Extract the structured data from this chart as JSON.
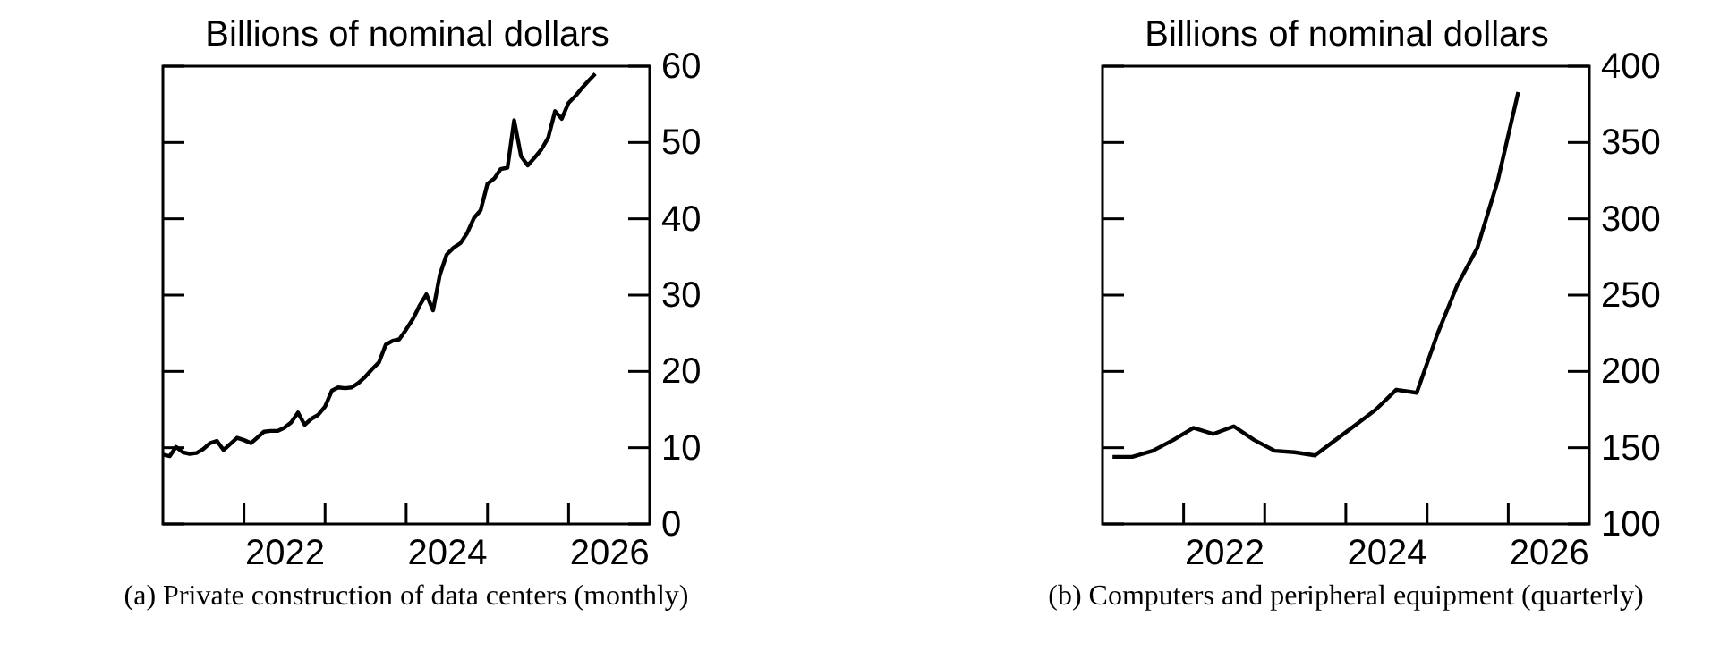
{
  "chart_data": [
    {
      "type": "line",
      "title": "(a) Private construction of data centers (monthly)",
      "ylabel": "Billions of nominal dollars",
      "x": [
        "2021-01",
        "2021-02",
        "2021-03",
        "2021-04",
        "2021-05",
        "2021-06",
        "2021-07",
        "2021-08",
        "2021-09",
        "2021-10",
        "2021-11",
        "2021-12",
        "2022-01",
        "2022-02",
        "2022-03",
        "2022-04",
        "2022-05",
        "2022-06",
        "2022-07",
        "2022-08",
        "2022-09",
        "2022-10",
        "2022-11",
        "2022-12",
        "2023-01",
        "2023-02",
        "2023-03",
        "2023-04",
        "2023-05",
        "2023-06",
        "2023-07",
        "2023-08",
        "2023-09",
        "2023-10",
        "2023-11",
        "2023-12",
        "2024-01",
        "2024-02",
        "2024-03",
        "2024-04",
        "2024-05",
        "2024-06",
        "2024-07",
        "2024-08",
        "2024-09",
        "2024-10",
        "2024-11",
        "2024-12",
        "2025-01",
        "2025-02",
        "2025-03",
        "2025-04",
        "2025-05",
        "2025-06",
        "2025-07",
        "2025-08",
        "2025-09",
        "2025-10",
        "2025-11",
        "2025-12",
        "2026-01",
        "2026-02",
        "2026-03",
        "2026-04",
        "2026-05"
      ],
      "series": [
        {
          "color": "#000000",
          "values": [
            9.1,
            8.9,
            10.1,
            9.4,
            9.2,
            9.3,
            9.8,
            10.6,
            10.9,
            9.7,
            10.5,
            11.3,
            11.0,
            10.6,
            11.3,
            12.1,
            12.2,
            12.2,
            12.6,
            13.3,
            14.6,
            13.0,
            13.8,
            14.3,
            15.4,
            17.5,
            17.9,
            17.8,
            17.9,
            18.5,
            19.3,
            20.3,
            21.2,
            23.5,
            24.0,
            24.2,
            25.5,
            26.9,
            28.6,
            30.1,
            28.0,
            32.7,
            35.3,
            36.2,
            36.8,
            38.1,
            40.1,
            41.1,
            44.6,
            45.3,
            46.5,
            46.7,
            52.9,
            48.2,
            47.0,
            48.0,
            49.1,
            50.6,
            54.1,
            53.1,
            55.2,
            56.1,
            57.1,
            58.1,
            59.0
          ]
        }
      ],
      "xlim": [
        "2021-01-01",
        "2027-01-01"
      ],
      "xticks": [
        {
          "value": "2022-01-01",
          "label": null
        },
        {
          "value": "2023-01-01",
          "label": null
        },
        {
          "value": "2024-01-01",
          "label": null
        },
        {
          "value": "2025-01-01",
          "label": null
        },
        {
          "value": "2026-01-01",
          "label": null
        },
        {
          "value": "2022-07-01",
          "label": "2022"
        },
        {
          "value": "2024-07-01",
          "label": "2024"
        },
        {
          "value": "2026-07-01",
          "label": "2026"
        }
      ],
      "ylim": [
        0,
        60
      ],
      "yticks": [
        0,
        10,
        20,
        30,
        40,
        50,
        60
      ],
      "grid": false
    },
    {
      "type": "line",
      "title": "(b)  Computers and peripheral equipment (quarterly)",
      "ylabel": "Billions of nominal dollars",
      "x": [
        "2021-02-15",
        "2021-05-15",
        "2021-08-15",
        "2021-11-15",
        "2022-02-15",
        "2022-05-15",
        "2022-08-15",
        "2022-11-15",
        "2023-02-15",
        "2023-05-15",
        "2023-08-15",
        "2023-11-15",
        "2024-02-15",
        "2024-05-15",
        "2024-08-15",
        "2024-11-15",
        "2025-02-15",
        "2025-05-15",
        "2025-08-15",
        "2025-11-15",
        "2026-02-15"
      ],
      "series": [
        {
          "color": "#000000",
          "values": [
            144,
            144,
            148,
            155,
            163,
            159,
            164,
            155,
            148,
            147,
            145,
            155,
            165,
            175,
            188,
            186,
            224,
            256,
            281,
            325,
            383
          ]
        }
      ],
      "xlim": [
        "2021-01-01",
        "2027-01-01"
      ],
      "xticks": [
        {
          "value": "2022-01-01",
          "label": null
        },
        {
          "value": "2023-01-01",
          "label": null
        },
        {
          "value": "2024-01-01",
          "label": null
        },
        {
          "value": "2025-01-01",
          "label": null
        },
        {
          "value": "2026-01-01",
          "label": null
        },
        {
          "value": "2022-07-01",
          "label": "2022"
        },
        {
          "value": "2024-07-01",
          "label": "2024"
        },
        {
          "value": "2026-07-01",
          "label": "2026"
        }
      ],
      "ylim": [
        100,
        400
      ],
      "yticks": [
        100,
        150,
        200,
        250,
        300,
        350,
        400
      ],
      "grid": false
    }
  ]
}
